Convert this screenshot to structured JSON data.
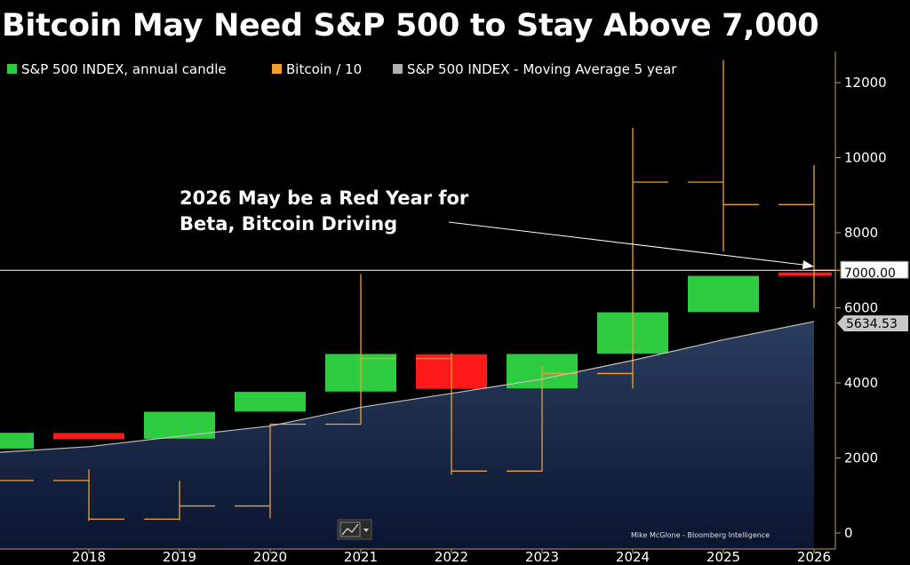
{
  "title": "Bitcoin May Need S&P 500 to Stay Above 7,000",
  "chart_data": {
    "type": "candlestick",
    "legend_position": "top-left",
    "grid": false,
    "legend": [
      {
        "label": "S&P 500 INDEX, annual candle",
        "color": "#2ecc40"
      },
      {
        "label": "Bitcoin / 10",
        "color": "#f0a030"
      },
      {
        "label": "S&P 500 INDEX - Moving Average 5 year",
        "color": "#b0b0b0"
      }
    ],
    "xlim": [
      2017,
      2026.2
    ],
    "ylim": [
      -200,
      12600
    ],
    "x_ticks": [
      "2018",
      "2019",
      "2020",
      "2021",
      "2022",
      "2023",
      "2024",
      "2025",
      "2026"
    ],
    "y_ticks": [
      "0",
      "2000",
      "4000",
      "6000",
      "8000",
      "10000",
      "12000"
    ],
    "sp500_candles": [
      {
        "year": 2017,
        "open": 2240,
        "close": 2670,
        "high": 2670,
        "low": 2240
      },
      {
        "year": 2018,
        "open": 2670,
        "close": 2500,
        "high": 2900,
        "low": 2350
      },
      {
        "year": 2019,
        "open": 2500,
        "close": 3230,
        "high": 3230,
        "low": 2450
      },
      {
        "year": 2020,
        "open": 3230,
        "close": 3760,
        "high": 3760,
        "low": 2200
      },
      {
        "year": 2021,
        "open": 3760,
        "close": 4770,
        "high": 4800,
        "low": 3700
      },
      {
        "year": 2022,
        "open": 4770,
        "close": 3840,
        "high": 4810,
        "low": 3500
      },
      {
        "year": 2023,
        "open": 3840,
        "close": 4770,
        "high": 4790,
        "low": 3800
      },
      {
        "year": 2024,
        "open": 4770,
        "close": 5880,
        "high": 6100,
        "low": 4700
      },
      {
        "year": 2025,
        "open": 5880,
        "close": 6850,
        "high": 7000,
        "low": 4830
      },
      {
        "year": 2026,
        "open": 6950,
        "close": 6850,
        "high": 7000,
        "low": 6800
      }
    ],
    "bitcoin_div10": [
      {
        "year": 2017,
        "open": 100,
        "close": 1400,
        "high": 2000,
        "low": 80
      },
      {
        "year": 2018,
        "open": 1400,
        "close": 370,
        "high": 1700,
        "low": 320
      },
      {
        "year": 2019,
        "open": 370,
        "close": 720,
        "high": 1390,
        "low": 340
      },
      {
        "year": 2020,
        "open": 720,
        "close": 2900,
        "high": 2900,
        "low": 390
      },
      {
        "year": 2021,
        "open": 2900,
        "close": 4650,
        "high": 6900,
        "low": 2900
      },
      {
        "year": 2022,
        "open": 4650,
        "close": 1650,
        "high": 4800,
        "low": 1550
      },
      {
        "year": 2023,
        "open": 1650,
        "close": 4250,
        "high": 4450,
        "low": 1650
      },
      {
        "year": 2024,
        "open": 4250,
        "close": 9350,
        "high": 10800,
        "low": 3850
      },
      {
        "year": 2025,
        "open": 9350,
        "close": 8750,
        "high": 12600,
        "low": 7500
      },
      {
        "year": 2026,
        "open": 8750,
        "close": 7000,
        "high": 9800,
        "low": 6000
      }
    ],
    "moving_average_5y": {
      "x": [
        2017,
        2018,
        2019,
        2020,
        2021,
        2022,
        2023,
        2024,
        2025,
        2026
      ],
      "y": [
        2150,
        2300,
        2580,
        2850,
        3350,
        3720,
        4100,
        4600,
        5150,
        5634.53
      ]
    },
    "reference_line": {
      "value": 7000,
      "label": "7000.00"
    },
    "last_value_label": {
      "value": 5634.53,
      "label": "5634.53"
    },
    "annotation": [
      "2026 May be a Red Year for",
      "Beta, Bitcoin Driving"
    ],
    "credit": "Mike McGlone - Bloomberg Intelligence"
  },
  "colors": {
    "up": "#2ecc40",
    "down": "#ff1a1a",
    "bitcoin": "#f0a030",
    "ma": "#c0c0c0",
    "area_top": "#2a3d5e",
    "area_bottom": "#0a1530"
  },
  "toolbar_icon": "chart-toggle-icon"
}
